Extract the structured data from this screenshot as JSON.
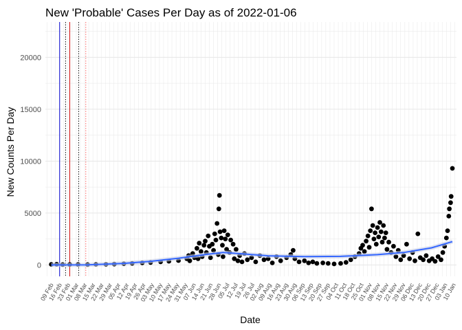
{
  "chart_data": {
    "type": "scatter",
    "title": "New 'Probable' Cases Per Day as of 2022-01-06",
    "xlabel": "Date",
    "ylabel": "New Counts Per Day",
    "x_axis_type": "date",
    "xlim": [
      "2020-02-20",
      "2022-01-12"
    ],
    "ylim": [
      -1100,
      23400
    ],
    "y_ticks": [
      0,
      5000,
      10000,
      15000,
      20000
    ],
    "x_tick_labels": [
      "09 Feb",
      "16 Feb",
      "23 Feb",
      "01 Mar",
      "08 Mar",
      "15 Mar",
      "22 Mar",
      "29 Mar",
      "05 Apr",
      "12 Apr",
      "19 Apr",
      "26 Apr",
      "03 May",
      "10 May",
      "17 May",
      "24 May",
      "31 May",
      "07 Jun",
      "14 Jun",
      "21 Jun",
      "28 Jun",
      "05 Jul",
      "12 Jul",
      "19 Jul",
      "26 Jul",
      "02 Aug",
      "09 Aug",
      "16 Aug",
      "23 Aug",
      "30 Aug",
      "06 Sep",
      "13 Sep",
      "20 Sep",
      "27 Sep",
      "04 Oct",
      "11 Oct",
      "18 Oct",
      "25 Oct",
      "01 Nov",
      "08 Nov",
      "15 Nov",
      "22 Nov",
      "29 Nov",
      "06 Dec",
      "13 Dec",
      "20 Dec",
      "27 Dec",
      "03 Jan",
      "10 Jan"
    ],
    "grid": true,
    "vertical_lines": [
      {
        "x": "2020-03-15",
        "color": "#0000cc",
        "style": "solid"
      },
      {
        "x": "2020-04-01",
        "color": "#cc0000",
        "style": "solid"
      },
      {
        "x": "2020-03-25",
        "color": "#000000",
        "style": "dotted"
      },
      {
        "x": "2020-04-16",
        "color": "#000000",
        "style": "dotted"
      },
      {
        "x": "2020-04-28",
        "color": "#ff6666",
        "style": "dotted"
      }
    ],
    "series": [
      {
        "type": "scatter",
        "color": "#000000",
        "points": [
          [
            "2020-03-01",
            60
          ],
          [
            "2020-03-10",
            70
          ],
          [
            "2020-03-20",
            40
          ],
          [
            "2020-04-01",
            50
          ],
          [
            "2020-04-15",
            50
          ],
          [
            "2020-05-01",
            40
          ],
          [
            "2020-05-15",
            60
          ],
          [
            "2020-06-01",
            60
          ],
          [
            "2020-06-15",
            80
          ],
          [
            "2020-07-01",
            120
          ],
          [
            "2020-07-15",
            150
          ],
          [
            "2020-08-01",
            200
          ],
          [
            "2020-08-15",
            240
          ],
          [
            "2020-09-01",
            300
          ],
          [
            "2020-09-15",
            360
          ],
          [
            "2020-10-01",
            420
          ],
          [
            "2020-10-15",
            600
          ],
          [
            "2020-10-18",
            900
          ],
          [
            "2020-10-20",
            400
          ],
          [
            "2020-10-25",
            1100
          ],
          [
            "2020-10-28",
            700
          ],
          [
            "2020-11-01",
            1600
          ],
          [
            "2020-11-03",
            600
          ],
          [
            "2020-11-05",
            2100
          ],
          [
            "2020-11-08",
            1300
          ],
          [
            "2020-11-10",
            800
          ],
          [
            "2020-11-13",
            1900
          ],
          [
            "2020-11-15",
            2300
          ],
          [
            "2020-11-17",
            1200
          ],
          [
            "2020-11-20",
            2800
          ],
          [
            "2020-11-22",
            1800
          ],
          [
            "2020-11-24",
            700
          ],
          [
            "2020-11-27",
            2000
          ],
          [
            "2020-11-29",
            1400
          ],
          [
            "2020-12-01",
            3000
          ],
          [
            "2020-12-03",
            2400
          ],
          [
            "2020-12-05",
            4000
          ],
          [
            "2020-12-07",
            1000
          ],
          [
            "2020-12-08",
            5400
          ],
          [
            "2020-12-09",
            6700
          ],
          [
            "2020-12-10",
            3200
          ],
          [
            "2020-12-12",
            2600
          ],
          [
            "2020-12-14",
            1900
          ],
          [
            "2020-12-15",
            800
          ],
          [
            "2020-12-17",
            3300
          ],
          [
            "2020-12-19",
            2500
          ],
          [
            "2020-12-21",
            1500
          ],
          [
            "2020-12-23",
            2900
          ],
          [
            "2020-12-26",
            1200
          ],
          [
            "2020-12-28",
            2400
          ],
          [
            "2021-01-01",
            2000
          ],
          [
            "2021-01-03",
            600
          ],
          [
            "2021-01-06",
            1500
          ],
          [
            "2021-01-09",
            400
          ],
          [
            "2021-01-12",
            900
          ],
          [
            "2021-01-16",
            300
          ],
          [
            "2021-01-20",
            1100
          ],
          [
            "2021-01-25",
            500
          ],
          [
            "2021-02-01",
            700
          ],
          [
            "2021-02-08",
            300
          ],
          [
            "2021-02-15",
            900
          ],
          [
            "2021-02-22",
            500
          ],
          [
            "2021-03-01",
            600
          ],
          [
            "2021-03-08",
            200
          ],
          [
            "2021-03-15",
            800
          ],
          [
            "2021-03-22",
            400
          ],
          [
            "2021-04-01",
            700
          ],
          [
            "2021-04-08",
            1000
          ],
          [
            "2021-04-12",
            1400
          ],
          [
            "2021-04-15",
            600
          ],
          [
            "2021-04-22",
            300
          ],
          [
            "2021-05-01",
            400
          ],
          [
            "2021-05-08",
            200
          ],
          [
            "2021-05-15",
            300
          ],
          [
            "2021-05-22",
            150
          ],
          [
            "2021-06-01",
            200
          ],
          [
            "2021-06-10",
            150
          ],
          [
            "2021-06-20",
            100
          ],
          [
            "2021-07-01",
            150
          ],
          [
            "2021-07-10",
            250
          ],
          [
            "2021-07-18",
            500
          ],
          [
            "2021-07-25",
            800
          ],
          [
            "2021-08-01",
            1100
          ],
          [
            "2021-08-04",
            1600
          ],
          [
            "2021-08-07",
            1900
          ],
          [
            "2021-08-10",
            1300
          ],
          [
            "2021-08-13",
            2300
          ],
          [
            "2021-08-16",
            2800
          ],
          [
            "2021-08-18",
            1700
          ],
          [
            "2021-08-20",
            3300
          ],
          [
            "2021-08-22",
            5400
          ],
          [
            "2021-08-24",
            3800
          ],
          [
            "2021-08-26",
            2500
          ],
          [
            "2021-08-28",
            3100
          ],
          [
            "2021-08-30",
            2000
          ],
          [
            "2021-09-01",
            3600
          ],
          [
            "2021-09-03",
            2700
          ],
          [
            "2021-09-05",
            4100
          ],
          [
            "2021-09-07",
            3200
          ],
          [
            "2021-09-09",
            2200
          ],
          [
            "2021-09-11",
            3800
          ],
          [
            "2021-09-13",
            2600
          ],
          [
            "2021-09-15",
            3100
          ],
          [
            "2021-09-17",
            1500
          ],
          [
            "2021-09-20",
            2200
          ],
          [
            "2021-09-24",
            1200
          ],
          [
            "2021-09-28",
            1800
          ],
          [
            "2021-10-02",
            800
          ],
          [
            "2021-10-06",
            1400
          ],
          [
            "2021-10-10",
            500
          ],
          [
            "2021-10-15",
            900
          ],
          [
            "2021-10-20",
            2000
          ],
          [
            "2021-10-25",
            600
          ],
          [
            "2021-10-30",
            1200
          ],
          [
            "2021-11-03",
            400
          ],
          [
            "2021-11-08",
            3000
          ],
          [
            "2021-11-12",
            700
          ],
          [
            "2021-11-17",
            500
          ],
          [
            "2021-11-22",
            900
          ],
          [
            "2021-11-27",
            400
          ],
          [
            "2021-12-02",
            600
          ],
          [
            "2021-12-07",
            350
          ],
          [
            "2021-12-12",
            800
          ],
          [
            "2021-12-17",
            500
          ],
          [
            "2021-12-20",
            1200
          ],
          [
            "2021-12-23",
            1800
          ],
          [
            "2021-12-26",
            2600
          ],
          [
            "2021-12-28",
            3300
          ],
          [
            "2021-12-30",
            4700
          ],
          [
            "2021-12-31",
            5400
          ],
          [
            "2022-01-02",
            6000
          ],
          [
            "2022-01-03",
            6600
          ],
          [
            "2022-01-05",
            9300
          ]
        ]
      },
      {
        "type": "smooth",
        "color": "#3366ff",
        "points": [
          [
            "2020-03-01",
            0
          ],
          [
            "2020-05-01",
            10
          ],
          [
            "2020-07-01",
            150
          ],
          [
            "2020-08-15",
            350
          ],
          [
            "2020-10-01",
            650
          ],
          [
            "2020-11-15",
            1000
          ],
          [
            "2020-12-15",
            1200
          ],
          [
            "2021-01-15",
            1080
          ],
          [
            "2021-03-01",
            880
          ],
          [
            "2021-05-01",
            800
          ],
          [
            "2021-07-01",
            830
          ],
          [
            "2021-09-01",
            990
          ],
          [
            "2021-10-15",
            1200
          ],
          [
            "2021-12-01",
            1650
          ],
          [
            "2022-01-05",
            2250
          ]
        ]
      }
    ]
  }
}
